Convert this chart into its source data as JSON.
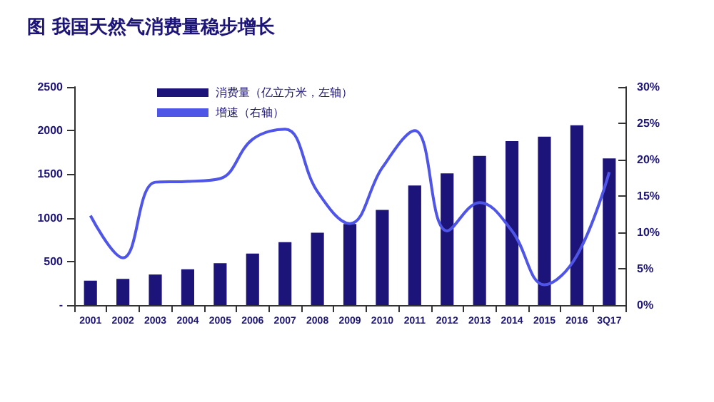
{
  "chart_data": {
    "type": "bar",
    "title": "图 我国天然气消费量稳步增长",
    "categories": [
      "2001",
      "2002",
      "2003",
      "2004",
      "2005",
      "2006",
      "2007",
      "2008",
      "2009",
      "2010",
      "2011",
      "2012",
      "2013",
      "2014",
      "2015",
      "2016",
      "3Q17"
    ],
    "series": [
      {
        "name": "消费量（亿立方米，左轴）",
        "color": "#1c1478",
        "values": [
          280,
          300,
          350,
          410,
          480,
          590,
          720,
          830,
          930,
          1090,
          1370,
          1510,
          1710,
          1880,
          1930,
          2060,
          1680
        ]
      },
      {
        "name": "增速（右轴）",
        "type": "line",
        "axis": "y2",
        "color": "#4f55e6",
        "values": [
          12.3,
          6.5,
          16.9,
          17.0,
          17.4,
          22.8,
          24.2,
          15.6,
          11.2,
          18.9,
          24.0,
          10.2,
          14.1,
          10.2,
          2.8,
          6.8,
          18.3
        ]
      }
    ],
    "ylim": [
      0,
      2500
    ],
    "yticks": [
      {
        "value": 0,
        "label": "-"
      },
      500,
      1000,
      1500,
      2000,
      2500
    ],
    "y2lim": [
      0,
      30
    ],
    "y2ticks": [
      {
        "value": 0,
        "label": "0%"
      },
      {
        "value": 5,
        "label": "5%"
      },
      {
        "value": 10,
        "label": "10%"
      },
      {
        "value": 15,
        "label": "15%"
      },
      {
        "value": 20,
        "label": "20%"
      },
      {
        "value": 25,
        "label": "25%"
      },
      {
        "value": 30,
        "label": "30%"
      }
    ],
    "legend": "top left",
    "grid": false,
    "marker": "none"
  }
}
